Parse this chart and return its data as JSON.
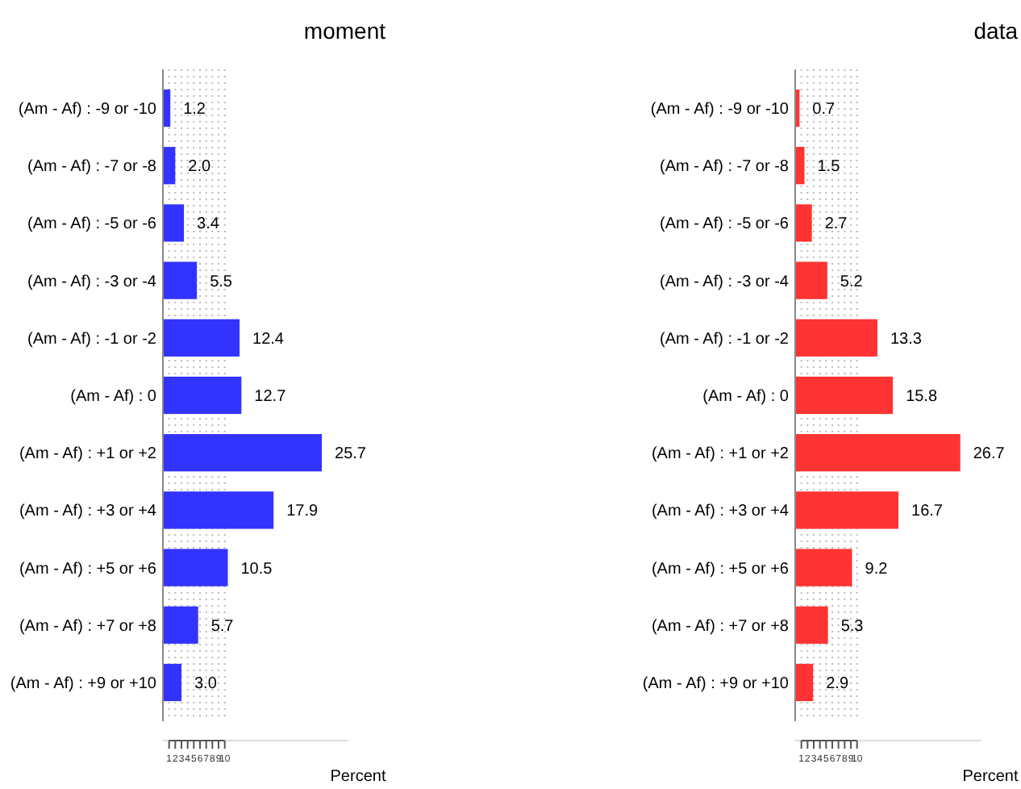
{
  "chart_data": [
    {
      "type": "bar",
      "orientation": "horizontal",
      "title": "moment",
      "xlabel": "Percent",
      "categories": [
        "(Am - Af) : -9 or -10",
        "(Am - Af) : -7 or -8",
        "(Am - Af) : -5 or -6",
        "(Am - Af) : -3 or -4",
        "(Am - Af) : -1 or -2",
        "(Am - Af) : 0",
        "(Am - Af) : +1 or +2",
        "(Am - Af) : +3 or +4",
        "(Am - Af) : +5 or +6",
        "(Am - Af) : +7 or +8",
        "(Am - Af) : +9 or +10"
      ],
      "values": [
        1.2,
        2.0,
        3.4,
        5.5,
        12.4,
        12.7,
        25.7,
        17.9,
        10.5,
        5.7,
        3.0
      ],
      "value_labels": [
        "1.2",
        "2.0",
        "3.4",
        "5.5",
        "12.4",
        "12.7",
        "25.7",
        "17.9",
        "10.5",
        "5.7",
        "3.0"
      ],
      "color": "#3333ff",
      "xlim": [
        0,
        30
      ],
      "xticks": [
        1,
        2,
        3,
        4,
        5,
        6,
        7,
        8,
        9,
        10
      ],
      "grid": "x"
    },
    {
      "type": "bar",
      "orientation": "horizontal",
      "title": "data",
      "xlabel": "Percent",
      "categories": [
        "(Am - Af) : -9 or -10",
        "(Am - Af) : -7 or -8",
        "(Am - Af) : -5 or -6",
        "(Am - Af) : -3 or -4",
        "(Am - Af) : -1 or -2",
        "(Am - Af) : 0",
        "(Am - Af) : +1 or +2",
        "(Am - Af) : +3 or +4",
        "(Am - Af) : +5 or +6",
        "(Am - Af) : +7 or +8",
        "(Am - Af) : +9 or +10"
      ],
      "values": [
        0.7,
        1.5,
        2.7,
        5.2,
        13.3,
        15.8,
        26.7,
        16.7,
        9.2,
        5.3,
        2.9
      ],
      "value_labels": [
        "0.7",
        "1.5",
        "2.7",
        "5.2",
        "13.3",
        "15.8",
        "26.7",
        "16.7",
        "9.2",
        "5.3",
        "2.9"
      ],
      "color": "#ff3333",
      "xlim": [
        0,
        30
      ],
      "xticks": [
        1,
        2,
        3,
        4,
        5,
        6,
        7,
        8,
        9,
        10
      ],
      "grid": "x"
    }
  ]
}
